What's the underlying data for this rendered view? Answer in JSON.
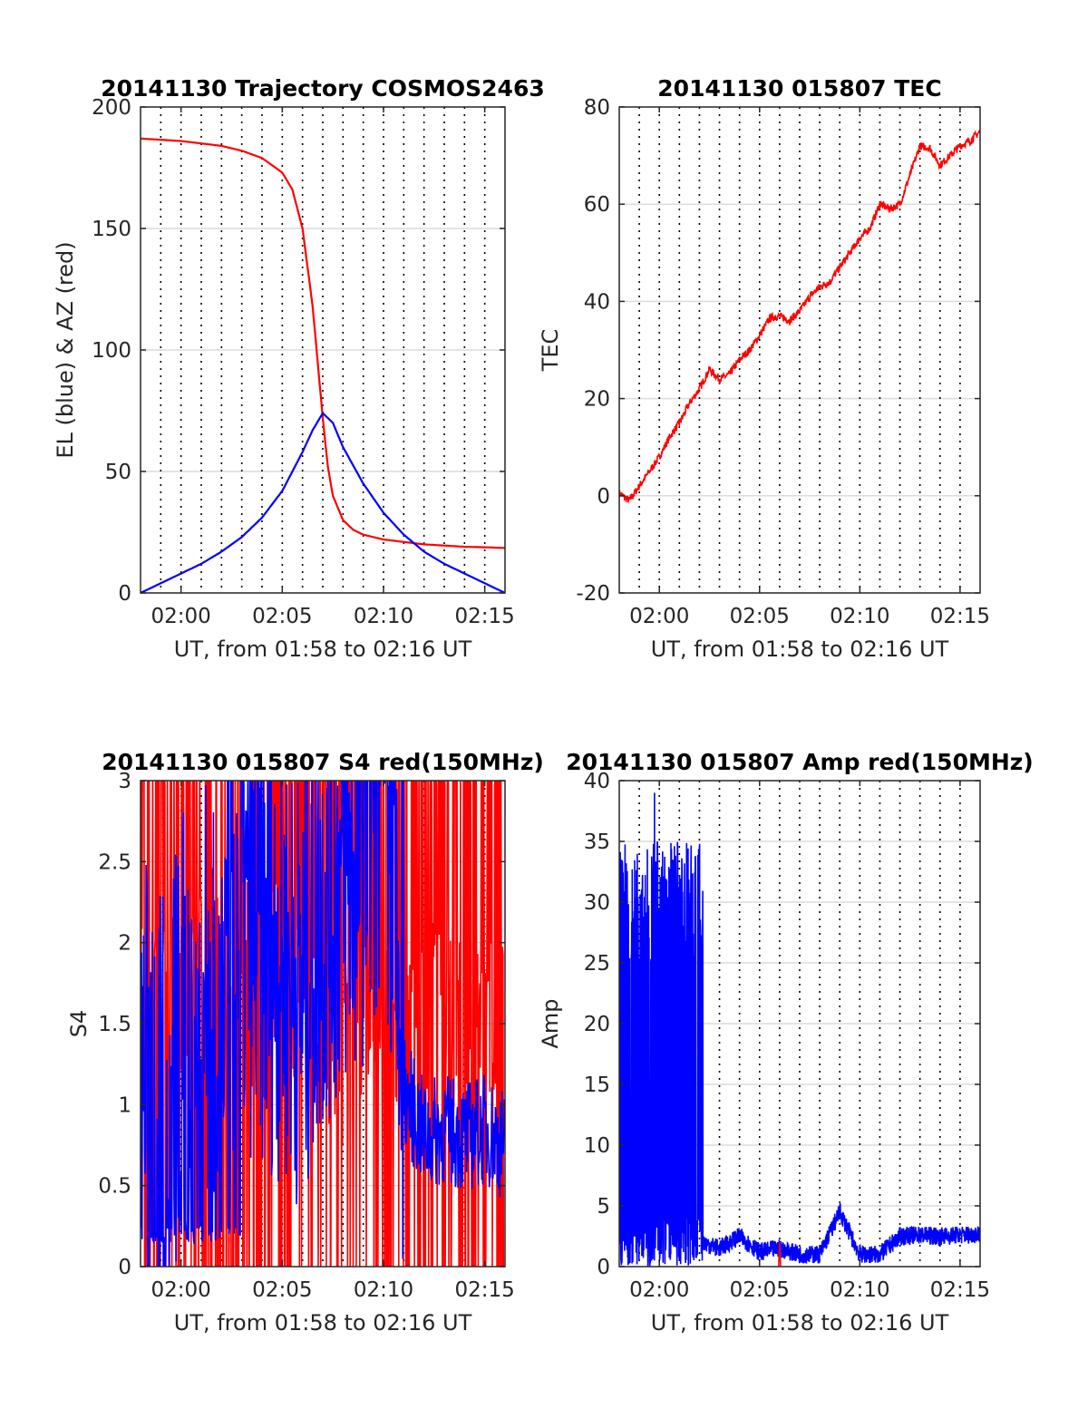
{
  "chart_data": [
    {
      "id": "trajectory",
      "type": "line",
      "title": "20141130 Trajectory COSMOS2463",
      "xlabel": "UT, from 01:58 to 02:16 UT",
      "ylabel": "EL (blue) & AZ (red)",
      "xlim": [
        "01:58",
        "02:16"
      ],
      "ylim": [
        0,
        200
      ],
      "yticks": [
        0,
        50,
        100,
        150,
        200
      ],
      "xticks": [
        "02:00",
        "02:05",
        "02:10",
        "02:15"
      ],
      "grid": "dotted vertical every minute, light horizontal at y ticks",
      "series": [
        {
          "key": "az",
          "color": "#ff0000",
          "x": [
            "01:58",
            "01:59",
            "02:00",
            "02:01",
            "02:02",
            "02:03",
            "02:04",
            "02:05",
            "02:05:30",
            "02:06",
            "02:06:30",
            "02:06:45",
            "02:07",
            "02:07:15",
            "02:07:30",
            "02:08",
            "02:08:30",
            "02:09",
            "02:10",
            "02:11",
            "02:12",
            "02:13",
            "02:14",
            "02:15",
            "02:16"
          ],
          "values": [
            187,
            186.5,
            186,
            185,
            184,
            182,
            179,
            173,
            166,
            150,
            118,
            95,
            72,
            52,
            40,
            30,
            26,
            24,
            22,
            21,
            20,
            19.5,
            19,
            18.8,
            18.5
          ]
        },
        {
          "key": "el",
          "color": "#0000ff",
          "x": [
            "01:58",
            "01:59",
            "02:00",
            "02:01",
            "02:02",
            "02:03",
            "02:04",
            "02:05",
            "02:06",
            "02:06:30",
            "02:07",
            "02:07:30",
            "02:08",
            "02:09",
            "02:10",
            "02:11",
            "02:12",
            "02:13",
            "02:14",
            "02:15",
            "02:16"
          ],
          "values": [
            0,
            4,
            8,
            12,
            17,
            23,
            31,
            42,
            58,
            67,
            74,
            70,
            60,
            45,
            33,
            24,
            17,
            12,
            8,
            4,
            0
          ]
        }
      ]
    },
    {
      "id": "tec",
      "type": "line",
      "title": "20141130 015807 TEC",
      "xlabel": "UT, from 01:58 to 02:16 UT",
      "ylabel": "TEC",
      "xlim": [
        "01:58",
        "02:16"
      ],
      "ylim": [
        -20,
        80
      ],
      "yticks": [
        -20,
        0,
        20,
        40,
        60,
        80
      ],
      "xticks": [
        "02:00",
        "02:05",
        "02:10",
        "02:15"
      ],
      "grid": "dotted vertical every minute, light horizontal at y ticks",
      "series": [
        {
          "key": "tec",
          "color": "#ff0000",
          "x": [
            "01:58",
            "01:58:30",
            "01:59",
            "01:59:30",
            "02:00",
            "02:00:30",
            "02:01",
            "02:01:30",
            "02:02",
            "02:02:30",
            "02:03",
            "02:03:30",
            "02:04",
            "02:04:30",
            "02:05",
            "02:05:30",
            "02:06",
            "02:06:30",
            "02:07",
            "02:07:30",
            "02:08",
            "02:08:30",
            "02:09",
            "02:09:30",
            "02:10",
            "02:10:30",
            "02:11",
            "02:11:30",
            "02:12",
            "02:12:30",
            "02:13",
            "02:13:30",
            "02:14",
            "02:14:30",
            "02:15",
            "02:15:30",
            "02:16"
          ],
          "values": [
            0.5,
            -1,
            2,
            5,
            8,
            12,
            15,
            19,
            22,
            26,
            24,
            25,
            28,
            30,
            33,
            36.5,
            37,
            36,
            38,
            41,
            43,
            44,
            47,
            50,
            53,
            55,
            60,
            59,
            60,
            66,
            72,
            71.5,
            68,
            70,
            72,
            73,
            75
          ]
        }
      ]
    },
    {
      "id": "s4",
      "type": "line",
      "title": "20141130 015807 S4 red(150MHz)",
      "xlabel": "UT, from 01:58 to 02:16 UT",
      "ylabel": "S4",
      "xlim": [
        "01:58",
        "02:16"
      ],
      "ylim": [
        0,
        3
      ],
      "yticks": [
        "0",
        "0.5",
        "1",
        "1.5",
        "2",
        "2.5",
        "3"
      ],
      "xticks": [
        "02:00",
        "02:05",
        "02:10",
        "02:15"
      ],
      "grid": "dotted vertical every minute, light horizontal at y ticks",
      "series": [
        {
          "key": "s4_red",
          "color": "#ff0000",
          "description_of_envelope": "dense noisy trace, mostly saturating between 0 and 3",
          "x": [
            "01:58",
            "01:59",
            "02:00",
            "02:01",
            "02:02",
            "02:03",
            "02:04",
            "02:05",
            "02:06",
            "02:07",
            "02:08",
            "02:09",
            "02:10",
            "02:11",
            "02:12",
            "02:13",
            "02:14",
            "02:15",
            "02:16"
          ],
          "values": [
            1.5,
            1.6,
            1.7,
            2.0,
            1.8,
            1.9,
            1.5,
            2.0,
            1.6,
            1.4,
            1.3,
            1.6,
            1.5,
            1.4,
            1.5,
            1.6,
            1.4,
            1.5,
            1.5
          ]
        },
        {
          "key": "s4_blue",
          "color": "#0000ff",
          "x": [
            "01:58",
            "01:59",
            "02:00",
            "02:01",
            "02:02",
            "02:03",
            "02:04",
            "02:05",
            "02:06",
            "02:07",
            "02:08",
            "02:09",
            "02:10",
            "02:11",
            "02:12",
            "02:13",
            "02:14",
            "02:15",
            "02:16"
          ],
          "values": [
            1.2,
            1.0,
            1.4,
            1.6,
            1.8,
            2.1,
            2.0,
            1.9,
            1.7,
            2.2,
            2.4,
            2.6,
            2.8,
            1.1,
            0.8,
            0.85,
            0.8,
            0.85,
            0.75
          ]
        }
      ]
    },
    {
      "id": "amp",
      "type": "line",
      "title": "20141130 015807 Amp red(150MHz)",
      "xlabel": "UT, from 01:58 to 02:16 UT",
      "ylabel": "Amp",
      "xlim": [
        "01:58",
        "02:16"
      ],
      "ylim": [
        0,
        40
      ],
      "yticks": [
        0,
        5,
        10,
        15,
        20,
        25,
        30,
        35,
        40
      ],
      "xticks": [
        "02:00",
        "02:05",
        "02:10",
        "02:15"
      ],
      "grid": "dotted vertical every minute, light horizontal at y ticks",
      "series": [
        {
          "key": "amp_blue",
          "color": "#0000ff",
          "x": [
            "01:58",
            "01:59",
            "02:00",
            "02:01",
            "02:02",
            "02:02:10",
            "02:03",
            "02:04",
            "02:05",
            "02:06",
            "02:07",
            "02:08",
            "02:09",
            "02:10",
            "02:11",
            "02:12",
            "02:13",
            "02:14",
            "02:15",
            "02:16"
          ],
          "values": [
            34,
            33,
            35,
            34,
            33,
            2,
            1.5,
            2.5,
            1.2,
            1.5,
            1.0,
            1.0,
            4.5,
            1.0,
            1.0,
            2.5,
            2.6,
            2.5,
            2.6,
            2.7
          ],
          "peak": {
            "x": "01:59:45",
            "value": 39
          }
        },
        {
          "key": "amp_red",
          "color": "#ff0000",
          "x": [
            "02:06"
          ],
          "values": [
            2.0
          ]
        }
      ]
    }
  ]
}
